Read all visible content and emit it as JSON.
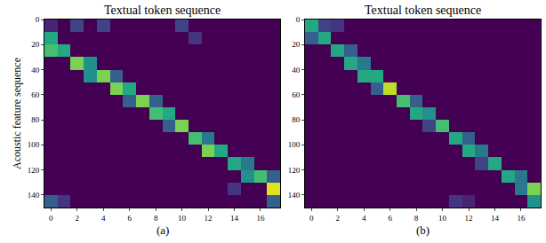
{
  "chart_data": [
    {
      "type": "heatmap",
      "title": "Textual token sequence",
      "ylabel": "Acoustic feature sequence",
      "caption": "(a)",
      "color": "Viridis",
      "zlim": [
        0,
        1
      ],
      "x": [
        0,
        1,
        2,
        3,
        4,
        5,
        6,
        7,
        8,
        9,
        10,
        11,
        12,
        13,
        14,
        15,
        16,
        17
      ],
      "y": [
        5,
        15,
        25,
        35,
        45,
        55,
        65,
        75,
        85,
        95,
        105,
        115,
        125,
        135,
        145
      ],
      "xlim": [
        -0.5,
        17.5
      ],
      "ylim": [
        150,
        0
      ],
      "xticks": [
        0,
        2,
        4,
        6,
        8,
        10,
        12,
        14,
        16
      ],
      "yticks": [
        0,
        20,
        40,
        60,
        80,
        100,
        120,
        140
      ],
      "z": [
        [
          0.1,
          0,
          0.2,
          0,
          0.2,
          0,
          0,
          0,
          0,
          0,
          0.2,
          0,
          0,
          0,
          0,
          0,
          0,
          0
        ],
        [
          0.6,
          0,
          0,
          0,
          0,
          0,
          0,
          0,
          0,
          0,
          0,
          0.15,
          0,
          0,
          0,
          0,
          0,
          0
        ],
        [
          0.7,
          0.6,
          0,
          0,
          0,
          0,
          0,
          0,
          0,
          0,
          0,
          0,
          0,
          0,
          0,
          0,
          0,
          0
        ],
        [
          0,
          0,
          0.8,
          0.5,
          0,
          0,
          0,
          0,
          0,
          0,
          0,
          0,
          0,
          0,
          0,
          0,
          0,
          0
        ],
        [
          0,
          0,
          0,
          0.5,
          0.8,
          0.3,
          0,
          0,
          0,
          0,
          0,
          0,
          0,
          0,
          0,
          0,
          0,
          0
        ],
        [
          0,
          0,
          0,
          0,
          0,
          0.8,
          0.6,
          0,
          0,
          0,
          0,
          0,
          0,
          0,
          0,
          0,
          0,
          0
        ],
        [
          0,
          0,
          0,
          0,
          0,
          0,
          0.3,
          0.8,
          0.3,
          0,
          0,
          0,
          0,
          0,
          0,
          0,
          0,
          0
        ],
        [
          0,
          0,
          0,
          0,
          0,
          0,
          0,
          0,
          0.7,
          0.6,
          0,
          0,
          0,
          0,
          0,
          0,
          0,
          0
        ],
        [
          0,
          0,
          0,
          0,
          0,
          0,
          0,
          0,
          0,
          0.3,
          0.8,
          0,
          0,
          0,
          0,
          0,
          0,
          0
        ],
        [
          0,
          0,
          0,
          0,
          0,
          0,
          0,
          0,
          0,
          0,
          0,
          0.7,
          0.4,
          0,
          0,
          0,
          0,
          0
        ],
        [
          0,
          0,
          0,
          0,
          0,
          0,
          0,
          0,
          0,
          0,
          0,
          0,
          0.8,
          0.6,
          0,
          0,
          0,
          0
        ],
        [
          0,
          0,
          0,
          0,
          0,
          0,
          0,
          0,
          0,
          0,
          0,
          0,
          0,
          0,
          0.6,
          0.4,
          0,
          0
        ],
        [
          0,
          0,
          0,
          0,
          0,
          0,
          0,
          0,
          0,
          0,
          0,
          0,
          0,
          0,
          0,
          0.5,
          0.7,
          0.3
        ],
        [
          0,
          0,
          0,
          0,
          0,
          0,
          0,
          0,
          0,
          0,
          0,
          0,
          0,
          0,
          0.15,
          0,
          0,
          0.95
        ],
        [
          0.3,
          0.15,
          0,
          0,
          0,
          0,
          0,
          0,
          0,
          0,
          0,
          0,
          0,
          0,
          0,
          0,
          0,
          0.3
        ]
      ]
    },
    {
      "type": "heatmap",
      "title": "Textual token sequence",
      "caption": "(b)",
      "color": "Viridis",
      "zlim": [
        0,
        1
      ],
      "x": [
        0,
        1,
        2,
        3,
        4,
        5,
        6,
        7,
        8,
        9,
        10,
        11,
        12,
        13,
        14,
        15,
        16,
        17
      ],
      "y": [
        5,
        15,
        25,
        35,
        45,
        55,
        65,
        75,
        85,
        95,
        105,
        115,
        125,
        135,
        145
      ],
      "xlim": [
        -0.5,
        17.5
      ],
      "ylim": [
        150,
        0
      ],
      "xticks": [
        0,
        2,
        4,
        6,
        8,
        10,
        12,
        14,
        16
      ],
      "yticks": [
        0,
        20,
        40,
        60,
        80,
        100,
        120,
        140
      ],
      "z": [
        [
          0.6,
          0.2,
          0.15,
          0,
          0,
          0,
          0,
          0,
          0,
          0,
          0,
          0,
          0,
          0,
          0,
          0,
          0,
          0
        ],
        [
          0.3,
          0.6,
          0,
          0,
          0,
          0,
          0,
          0,
          0,
          0,
          0,
          0,
          0,
          0,
          0,
          0,
          0,
          0
        ],
        [
          0,
          0,
          0.6,
          0.3,
          0,
          0,
          0,
          0,
          0,
          0,
          0,
          0,
          0,
          0,
          0,
          0,
          0,
          0
        ],
        [
          0,
          0,
          0,
          0.6,
          0.4,
          0,
          0,
          0,
          0,
          0,
          0,
          0,
          0,
          0,
          0,
          0,
          0,
          0
        ],
        [
          0,
          0,
          0,
          0,
          0.6,
          0.6,
          0,
          0,
          0,
          0,
          0,
          0,
          0,
          0,
          0,
          0,
          0,
          0
        ],
        [
          0,
          0,
          0,
          0,
          0,
          0.3,
          0.9,
          0,
          0,
          0,
          0,
          0,
          0,
          0,
          0,
          0,
          0,
          0
        ],
        [
          0,
          0,
          0,
          0,
          0,
          0,
          0,
          0.7,
          0.3,
          0,
          0,
          0,
          0,
          0,
          0,
          0,
          0,
          0
        ],
        [
          0,
          0,
          0,
          0,
          0,
          0,
          0,
          0,
          0.6,
          0.5,
          0,
          0,
          0,
          0,
          0,
          0,
          0,
          0
        ],
        [
          0,
          0,
          0,
          0,
          0,
          0,
          0,
          0,
          0,
          0.2,
          0.7,
          0,
          0,
          0,
          0,
          0,
          0,
          0
        ],
        [
          0,
          0,
          0,
          0,
          0,
          0,
          0,
          0,
          0,
          0,
          0,
          0.6,
          0.3,
          0,
          0,
          0,
          0,
          0
        ],
        [
          0,
          0,
          0,
          0,
          0,
          0,
          0,
          0,
          0,
          0,
          0,
          0,
          0.6,
          0.4,
          0,
          0,
          0,
          0
        ],
        [
          0,
          0,
          0,
          0,
          0,
          0,
          0,
          0,
          0,
          0,
          0,
          0,
          0,
          0.2,
          0.6,
          0,
          0,
          0
        ],
        [
          0,
          0,
          0,
          0,
          0,
          0,
          0,
          0,
          0,
          0,
          0,
          0,
          0,
          0,
          0,
          0.6,
          0.4,
          0
        ],
        [
          0,
          0,
          0,
          0,
          0,
          0,
          0,
          0,
          0,
          0,
          0,
          0,
          0,
          0,
          0,
          0,
          0.4,
          0.8
        ],
        [
          0,
          0,
          0,
          0,
          0,
          0,
          0,
          0,
          0,
          0,
          0,
          0.15,
          0.1,
          0,
          0,
          0,
          0,
          0.5
        ]
      ]
    }
  ]
}
